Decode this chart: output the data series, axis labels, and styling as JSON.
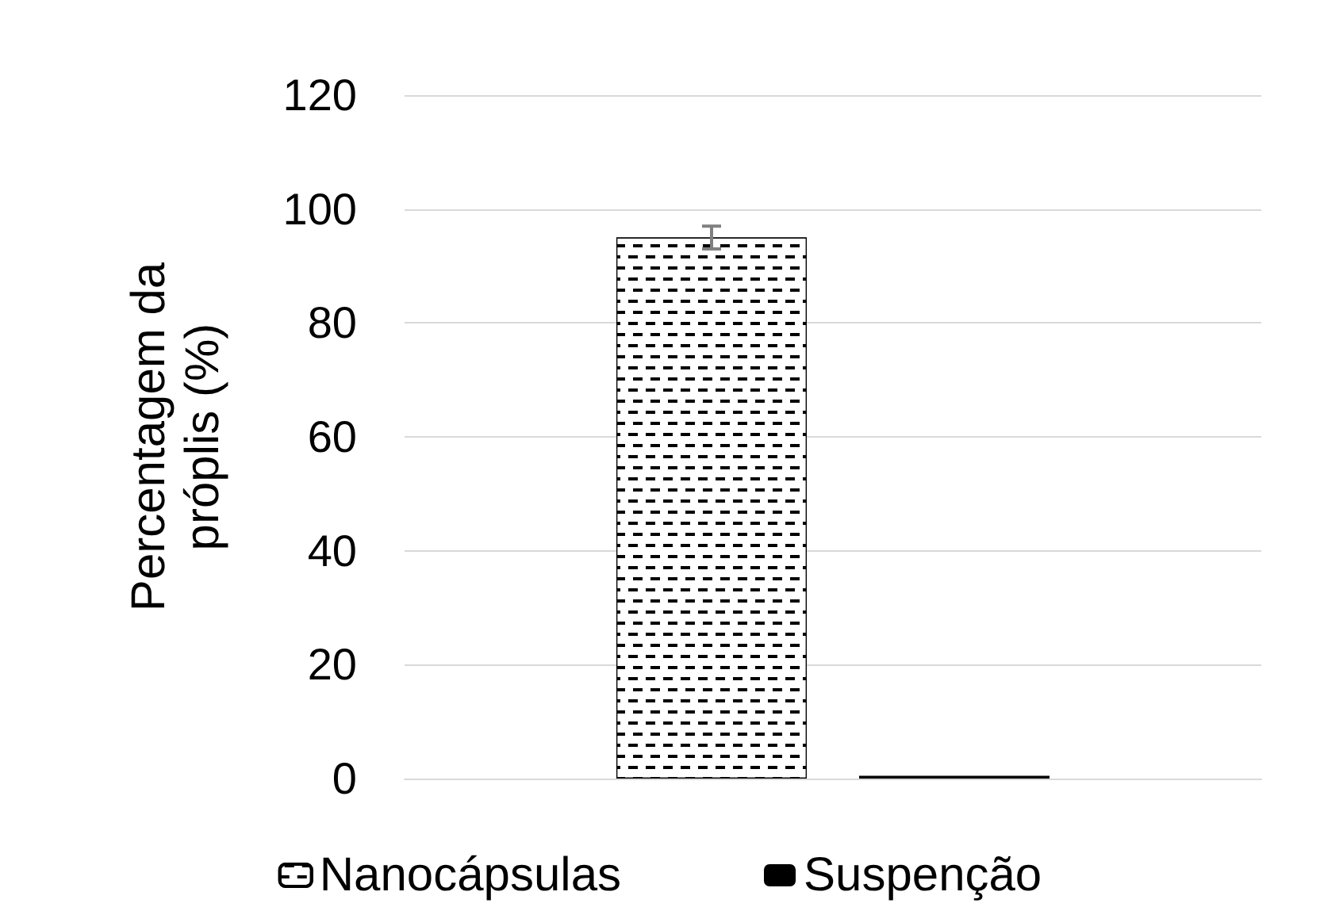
{
  "chart_data": {
    "type": "bar",
    "ylabel": "Percentagem da\npróplis (%)",
    "categories": [
      null
    ],
    "series": [
      {
        "name": "Nanocápsulas",
        "color": "#000000",
        "values": [
          95
        ],
        "errors": [
          2
        ]
      },
      {
        "name": "Suspenção",
        "color": "#000000",
        "values": [
          0.5
        ]
      }
    ],
    "ylim": [
      0,
      120
    ],
    "yticks": [
      0,
      20,
      40,
      60,
      80,
      100,
      120
    ],
    "grid": "y",
    "legend": "bottom"
  }
}
